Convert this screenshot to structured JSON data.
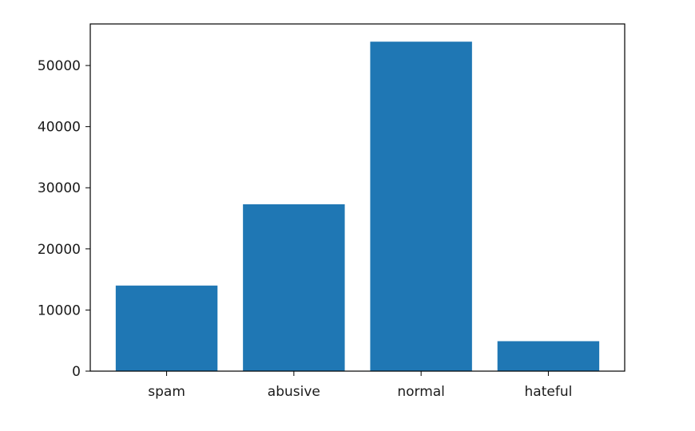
{
  "chart_data": {
    "type": "bar",
    "title": "",
    "xlabel": "",
    "ylabel": "",
    "categories": [
      "spam",
      "abusive",
      "normal",
      "hateful"
    ],
    "values": [
      14000,
      27300,
      53900,
      4900
    ],
    "ylim": [
      0,
      56800
    ],
    "yticks": [
      0,
      10000,
      20000,
      30000,
      40000,
      50000
    ],
    "bar_color": "#1f77b4",
    "grid": false,
    "legend": "none"
  }
}
